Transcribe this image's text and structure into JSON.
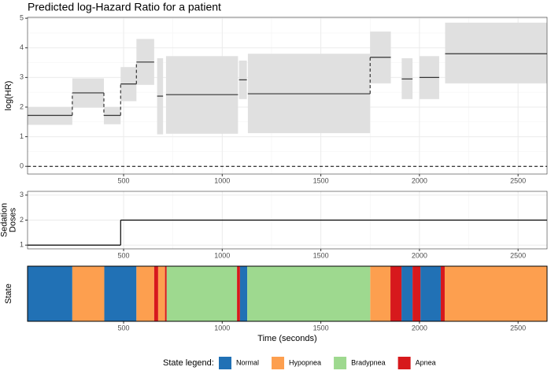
{
  "chart_data": [
    {
      "type": "step_band",
      "title": "Predicted log-Hazard Ratio for a patient",
      "y_label": "log(HR)",
      "x_start": [
        13,
        240,
        400,
        485,
        565,
        670,
        715,
        1085,
        1130,
        1750,
        1910,
        2000,
        2130
      ],
      "x_end": [
        240,
        400,
        485,
        565,
        655,
        700,
        1080,
        1125,
        1750,
        1855,
        1965,
        2100,
        2647
      ],
      "values": [
        1.72,
        2.48,
        1.72,
        2.78,
        3.52,
        2.37,
        2.42,
        2.92,
        2.45,
        3.68,
        2.95,
        3.0,
        3.8
      ],
      "lower": [
        1.4,
        1.98,
        1.42,
        2.2,
        2.75,
        1.08,
        1.1,
        2.27,
        1.12,
        2.8,
        2.27,
        2.27,
        2.8
      ],
      "upper": [
        2.0,
        2.97,
        2.0,
        3.35,
        4.3,
        3.65,
        3.72,
        3.57,
        3.8,
        4.55,
        3.65,
        3.72,
        4.85
      ],
      "color": "#333333",
      "band_color": "#e0e0e0",
      "reference_line": 0,
      "xlim": [
        13,
        2647
      ],
      "xticks": [
        500,
        1000,
        1500,
        2000,
        2500
      ],
      "ylim": [
        -0.26,
        5.03
      ],
      "yticks": [
        0,
        1,
        2,
        3,
        4,
        5
      ],
      "grid": true
    },
    {
      "type": "step",
      "y_label": [
        "Sedation",
        "Doses"
      ],
      "x_start": [
        13,
        485
      ],
      "x_end": [
        485,
        2647
      ],
      "values": [
        1,
        2
      ],
      "color": "#000000",
      "xlim": [
        13,
        2647
      ],
      "xticks": [
        500,
        1000,
        1500,
        2000,
        2500
      ],
      "ylim": [
        0.85,
        3.15
      ],
      "yticks": [
        1,
        2,
        3
      ],
      "grid": true
    },
    {
      "type": "state",
      "y_label": "State",
      "x_label": "Time (seconds)",
      "legend_title": "State legend:",
      "xlim": [
        13,
        2647
      ],
      "xticks": [
        500,
        1000,
        1500,
        2000,
        2500
      ],
      "series": [
        {
          "name": "Normal",
          "color": "#2171b5",
          "x_start": [
            13,
            402,
            1090,
            1909,
            2005
          ],
          "x_end": [
            240,
            565,
            1127,
            1965,
            2108
          ]
        },
        {
          "name": "Hypopnea",
          "color": "#fd9f4f",
          "x_start": [
            240,
            565,
            675,
            1750,
            2128
          ],
          "x_end": [
            402,
            655,
            710,
            1853,
            2647
          ]
        },
        {
          "name": "Bradypnea",
          "color": "#9ed98f",
          "x_start": [
            718,
            1127
          ],
          "x_end": [
            1075,
            1750
          ]
        },
        {
          "name": "Apnea",
          "color": "#d7191c",
          "x_start": [
            655,
            710,
            1075,
            1853,
            1965,
            2108
          ],
          "x_end": [
            675,
            718,
            1090,
            1909,
            2005,
            2128
          ]
        }
      ]
    }
  ]
}
